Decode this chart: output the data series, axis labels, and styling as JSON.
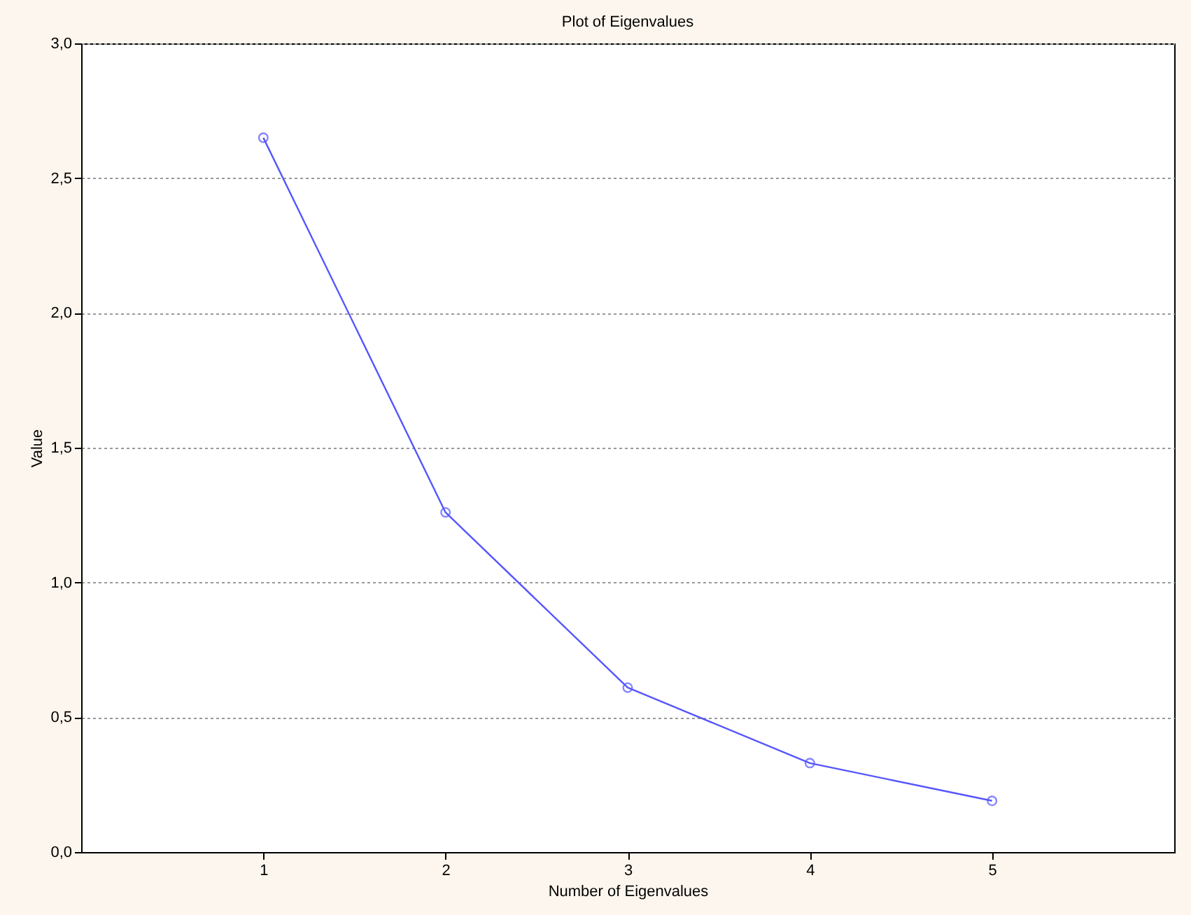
{
  "chart_data": {
    "type": "line",
    "title": "Plot of Eigenvalues",
    "xlabel": "Number of Eigenvalues",
    "ylabel": "Value",
    "x": [
      1,
      2,
      3,
      4,
      5
    ],
    "series": [
      {
        "color": "#5555ff",
        "values": [
          2.65,
          1.26,
          0.61,
          0.33,
          0.19
        ]
      }
    ],
    "xlim": [
      0,
      6
    ],
    "xticks": [
      1,
      2,
      3,
      4,
      5
    ],
    "ylim": [
      0,
      3
    ],
    "yticks": [
      {
        "value": 0,
        "label": "0,0"
      },
      {
        "value": 0.5,
        "label": "0,5"
      },
      {
        "value": 1,
        "label": "1,0"
      },
      {
        "value": 1.5,
        "label": "1,5"
      },
      {
        "value": 2,
        "label": "2,0"
      },
      {
        "value": 2.5,
        "label": "2,5"
      },
      {
        "value": 3,
        "label": "3,0"
      }
    ],
    "grid": "y",
    "marker": "circle",
    "line_style": "solid"
  }
}
